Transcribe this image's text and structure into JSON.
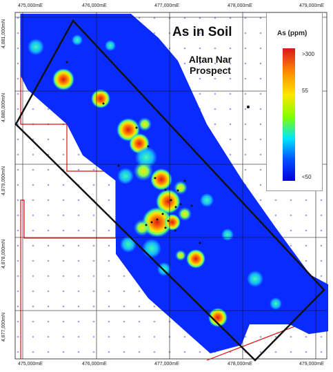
{
  "map": {
    "title": "As in Soil",
    "subtitle_line1": "Altan Nar",
    "subtitle_line2": "Prospect",
    "legend": {
      "title": "As (ppm)",
      "high_label": ">300",
      "mid_label": "55",
      "low_label": "<50",
      "gradient_colors": [
        "#d7191c",
        "#ff8c00",
        "#ffe600",
        "#7fff00",
        "#00e5ff",
        "#0050ff",
        "#0000dc"
      ]
    },
    "x_ticks": [
      "475,000mE",
      "476,000mE",
      "477,000mE",
      "478,000mE",
      "479,000mE"
    ],
    "y_ticks": [
      "4,881,000mN",
      "4,880,000mN",
      "4,879,000mN",
      "4,878,000mN",
      "4,877,000mN"
    ],
    "colors": {
      "background_low": "#0a2bff",
      "anomaly_high": "#d7191c",
      "outline": "#111111",
      "licence_boundary": "#d11"
    }
  }
}
